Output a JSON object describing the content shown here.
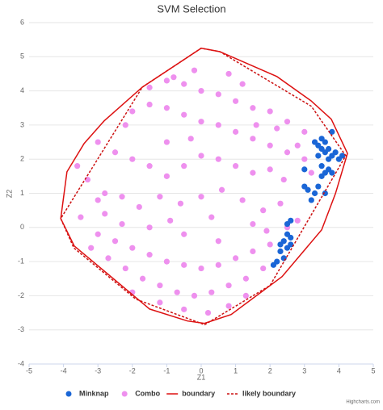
{
  "chart_data": {
    "type": "scatter",
    "title": "SVM Selection",
    "x_label": "Z1",
    "y_label": "Z2",
    "credits": "Highcharts.com",
    "xlim": [
      -5,
      5
    ],
    "xticks": [
      -5,
      -4,
      -3,
      -2,
      -1,
      0,
      1,
      2,
      3,
      4,
      5
    ],
    "ylim": [
      -4,
      6
    ],
    "yticks": [
      -4,
      -3,
      -2,
      -1,
      0,
      1,
      2,
      3,
      4,
      5,
      6
    ],
    "grid": true,
    "legend": "bottom",
    "series": [
      {
        "name": "Minknap",
        "color": "#1a66d6",
        "style": "markers",
        "x": [
          3.3,
          3.4,
          3.5,
          3.6,
          3.7,
          3.8,
          3.9,
          4.0,
          4.1,
          3.5,
          3.6,
          3.7,
          3.4,
          3.5,
          3.6,
          3.7,
          3.5,
          3.8,
          3.0,
          3.1,
          3.3,
          3.4,
          3.6,
          3.0,
          3.8,
          2.5,
          2.6,
          2.4,
          2.5,
          2.3,
          2.4,
          2.2,
          2.1,
          2.6,
          2.3,
          2.5,
          3.2,
          2.6
        ],
        "values": [
          2.5,
          2.4,
          2.3,
          2.2,
          2.3,
          2.1,
          2.2,
          2.0,
          2.1,
          2.6,
          2.5,
          2.0,
          2.1,
          1.8,
          1.6,
          1.7,
          1.5,
          1.6,
          1.2,
          1.1,
          1.0,
          1.2,
          1.0,
          1.7,
          2.8,
          -0.2,
          -0.3,
          -0.4,
          -0.6,
          -0.7,
          -0.9,
          -1.0,
          -1.1,
          -0.5,
          -0.5,
          0.1,
          0.8,
          0.2
        ]
      },
      {
        "name": "Combo",
        "color": "#ee90ee",
        "style": "markers",
        "x": [
          -2,
          -1.5,
          -1,
          -0.5,
          0,
          0.5,
          1,
          1.5,
          2,
          2.5,
          3,
          -1.5,
          -1,
          -0.5,
          0,
          0.5,
          1,
          1.5,
          2,
          2.5,
          3,
          3.3,
          0.8,
          1.2,
          -0.2,
          -0.8,
          -3,
          -2.5,
          -2,
          -1.5,
          -1,
          -0.5,
          0,
          0.5,
          1,
          1.5,
          2,
          2.4,
          -3.3,
          -2.8,
          -2.3,
          -1.8,
          -1.2,
          -0.6,
          0,
          0.6,
          1.2,
          1.8,
          2.3,
          2.8,
          3.2,
          2.8,
          -3.5,
          -3,
          -2.5,
          -2,
          -1.5,
          -1,
          -0.5,
          0,
          0.5,
          1,
          1.5,
          2,
          -3.2,
          -2.7,
          -2.2,
          -1.7,
          -1.2,
          -0.7,
          -0.2,
          0.3,
          0.8,
          1.3,
          1.8,
          -2.8,
          -2.3,
          -1.5,
          -0.5,
          0.5,
          1.5,
          -1.2,
          -0.5,
          0.2,
          0.8,
          1.3,
          -2.0,
          -3.0,
          -3.6,
          -2.2,
          -0.3,
          1.6,
          2.2,
          -1.0,
          2.5,
          1.9,
          -0.9,
          0.3
        ],
        "values": [
          3.4,
          3.6,
          3.5,
          3.3,
          3.1,
          3.0,
          2.8,
          2.6,
          2.4,
          2.2,
          2.0,
          4.1,
          4.3,
          4.2,
          4.0,
          3.9,
          3.7,
          3.5,
          3.4,
          3.1,
          2.8,
          2.5,
          4.5,
          4.2,
          4.6,
          4.4,
          2.5,
          2.2,
          2.0,
          1.8,
          1.5,
          1.8,
          2.1,
          2.0,
          1.8,
          1.6,
          1.7,
          1.4,
          1.4,
          1.0,
          0.9,
          0.6,
          0.9,
          0.7,
          0.9,
          1.1,
          0.8,
          0.5,
          0.7,
          0.2,
          1.6,
          2.4,
          0.3,
          -0.2,
          -0.4,
          -0.6,
          -0.8,
          -1.0,
          -1.1,
          -1.2,
          -1.1,
          -0.9,
          -0.7,
          -0.5,
          -0.6,
          -0.9,
          -1.2,
          -1.5,
          -1.7,
          -1.9,
          -2.0,
          -1.9,
          -1.7,
          -1.5,
          -1.2,
          0.4,
          0.1,
          0.0,
          -0.2,
          -0.4,
          0.1,
          -2.2,
          -2.4,
          -2.5,
          -2.3,
          -2.0,
          -1.9,
          0.8,
          1.8,
          3.0,
          2.6,
          3.0,
          2.9,
          2.5,
          0.0,
          -0.1,
          0.2,
          0.3
        ]
      },
      {
        "name": "boundary",
        "color": "#dd1111",
        "style": "line",
        "x": [
          0,
          0.54,
          2.2,
          3.19,
          3.78,
          4.25,
          3.9,
          3.5,
          2.35,
          0.87,
          0.09,
          -0.4,
          -1.5,
          -3.69,
          -4.08,
          -3.9,
          -3.4,
          -2.82,
          -1.71,
          0
        ],
        "values": [
          5.25,
          5.15,
          4.42,
          3.71,
          3.17,
          2.17,
          0.99,
          -0.07,
          -1.44,
          -2.55,
          -2.81,
          -2.74,
          -2.39,
          -0.54,
          0.26,
          1.63,
          2.46,
          3.12,
          4.11,
          5.25
        ]
      },
      {
        "name": "likely boundary",
        "color": "#cc1111",
        "style": "dashed-line",
        "x": [
          -1.71,
          0,
          0.54,
          3.2,
          4.2,
          2.0,
          0.1,
          -1.9,
          -3.7,
          -4.08,
          -1.71
        ],
        "values": [
          4.11,
          5.25,
          5.15,
          3.55,
          2.1,
          -1.7,
          -2.85,
          -2.1,
          -0.6,
          0.26,
          4.11
        ]
      }
    ]
  }
}
